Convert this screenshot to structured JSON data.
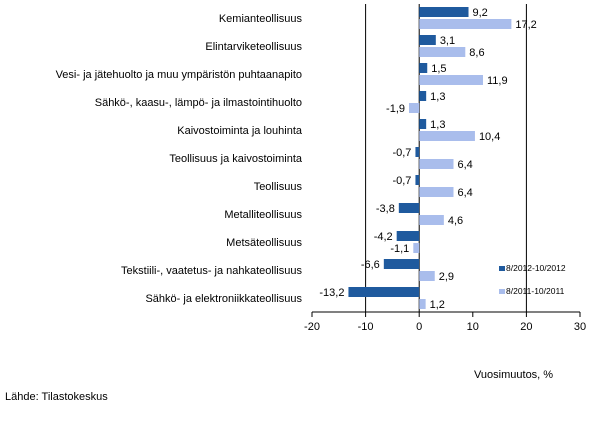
{
  "chart_data": {
    "type": "bar",
    "orientation": "horizontal",
    "categories": [
      "Kemianteollisuus",
      "Elintarviketeollisuus",
      "Vesi- ja jätehuolto ja muu ympäristön puhtaanapito",
      "Sähkö-, kaasu-, lämpö- ja ilmastointihuolto",
      "Kaivostoiminta ja louhinta",
      "Teollisuus ja kaivostoiminta",
      "Teollisuus",
      "Metalliteollisuus",
      "Metsäteollisuus",
      "Tekstiili-, vaatetus- ja nahkateollisuus",
      "Sähkö- ja elektroniikkateollisuus"
    ],
    "series": [
      {
        "name": "8/2012-10/2012",
        "color": "#1f5a9e",
        "values": [
          9.2,
          3.1,
          1.5,
          1.3,
          1.3,
          -0.7,
          -0.7,
          -3.8,
          -4.2,
          -6.6,
          -13.2
        ],
        "labels": [
          "9,2",
          "3,1",
          "1,5",
          "1,3",
          "1,3",
          "-0,7",
          "-0,7",
          "-3,8",
          "-4,2",
          "-6,6",
          "-13,2"
        ]
      },
      {
        "name": "8/2011-10/2011",
        "color": "#a9bdec",
        "values": [
          17.2,
          8.6,
          11.9,
          -1.9,
          10.4,
          6.4,
          6.4,
          4.6,
          -1.1,
          2.9,
          1.2
        ],
        "labels": [
          "17,2",
          "8,6",
          "11,9",
          "-1,9",
          "10,4",
          "6,4",
          "6,4",
          "4,6",
          "-1,1",
          "2,9",
          "1,2"
        ]
      }
    ],
    "xlim": [
      -20,
      30
    ],
    "xticks": [
      -20,
      -10,
      0,
      10,
      20,
      30
    ],
    "gridlines": [
      -10,
      20
    ],
    "xlabel": "Vuosimuutos, %",
    "legend_position": "bottom-right inside plot"
  },
  "source": "Lähde: Tilastokeskus"
}
